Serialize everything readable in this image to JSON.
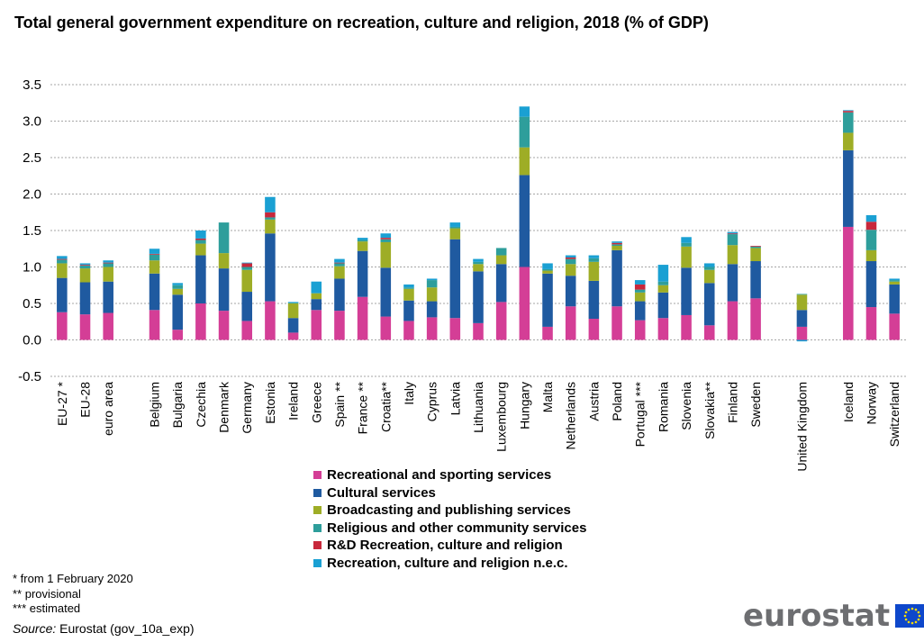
{
  "title": "Total general government expenditure on recreation, culture and religion, 2018 (% of GDP)",
  "notes": [
    "* from 1 February 2020",
    "** provisional",
    "*** estimated"
  ],
  "source_label": "Source:",
  "source_text": "Eurostat (gov_10a_exp)",
  "logo_text": "eurostat",
  "colors": {
    "recreational": "#d43e96",
    "cultural": "#1f5aa0",
    "broadcasting": "#9ead26",
    "religious": "#2e9e9b",
    "rd": "#c8283b",
    "nec": "#1aa0d3",
    "gridline": "#a6a6a6",
    "flag": "#0e47cb",
    "stars": "#ffdd00"
  },
  "chart_data": {
    "type": "bar",
    "stacked": true,
    "ylim": [
      -0.5,
      3.5
    ],
    "yticks": [
      -0.5,
      0.0,
      0.5,
      1.0,
      1.5,
      2.0,
      2.5,
      3.0,
      3.5
    ],
    "grid": true,
    "legend_position": "bottom",
    "categories": [
      "EU-27 *",
      "EU-28",
      "euro area",
      "",
      "Belgium",
      "Bulgaria",
      "Czechia",
      "Denmark",
      "Germany",
      "Estonia",
      "Ireland",
      "Greece",
      "Spain **",
      "France **",
      "Croatia**",
      "Italy",
      "Cyprus",
      "Latvia",
      "Lithuania",
      "Luxembourg",
      "Hungary",
      "Malta",
      "Netherlands",
      "Austria",
      "Poland",
      "Portugal ***",
      "Romania",
      "Slovenia",
      "Slovakia**",
      "Finland",
      "Sweden",
      "",
      "United Kingdom",
      "",
      "Iceland",
      "Norway",
      "Switzerland"
    ],
    "series": [
      {
        "name": "Recreational and sporting services",
        "color_key": "recreational",
        "values": [
          0.38,
          0.35,
          0.37,
          null,
          0.41,
          0.14,
          0.5,
          0.4,
          0.26,
          0.53,
          0.1,
          0.41,
          0.4,
          0.59,
          0.32,
          0.26,
          0.31,
          0.3,
          0.23,
          0.52,
          1.0,
          0.18,
          0.46,
          0.29,
          0.46,
          0.27,
          0.3,
          0.34,
          0.2,
          0.53,
          0.57,
          null,
          0.18,
          null,
          1.55,
          0.45,
          0.36
        ]
      },
      {
        "name": "Cultural services",
        "color_key": "cultural",
        "values": [
          0.47,
          0.44,
          0.43,
          null,
          0.5,
          0.48,
          0.66,
          0.58,
          0.4,
          0.93,
          0.2,
          0.15,
          0.44,
          0.63,
          0.67,
          0.28,
          0.22,
          1.08,
          0.71,
          0.52,
          1.26,
          0.73,
          0.42,
          0.52,
          0.77,
          0.26,
          0.35,
          0.65,
          0.58,
          0.51,
          0.51,
          null,
          0.23,
          null,
          1.05,
          0.63,
          0.4
        ]
      },
      {
        "name": "Broadcasting and publishing services",
        "color_key": "broadcasting",
        "values": [
          0.2,
          0.19,
          0.2,
          null,
          0.18,
          0.08,
          0.16,
          0.21,
          0.3,
          0.19,
          0.2,
          0.08,
          0.17,
          0.13,
          0.35,
          0.16,
          0.19,
          0.15,
          0.1,
          0.12,
          0.38,
          0.04,
          0.16,
          0.26,
          0.06,
          0.12,
          0.1,
          0.29,
          0.18,
          0.26,
          0.18,
          null,
          0.21,
          null,
          0.24,
          0.15,
          0.04
        ]
      },
      {
        "name": "Religious and other community services",
        "color_key": "religious",
        "values": [
          0.05,
          0.04,
          0.05,
          null,
          0.08,
          0.05,
          0.05,
          0.42,
          0.04,
          0.03,
          0.01,
          0.0,
          0.04,
          0.02,
          0.04,
          0.02,
          0.1,
          0.02,
          0.03,
          0.1,
          0.42,
          0.02,
          0.07,
          0.05,
          0.02,
          0.04,
          0.05,
          0.05,
          0.04,
          0.15,
          0.02,
          null,
          0.01,
          null,
          0.28,
          0.28,
          0.02
        ]
      },
      {
        "name": "R&D Recreation, culture and religion",
        "color_key": "rd",
        "values": [
          0.01,
          0.01,
          0.01,
          null,
          0.01,
          0.0,
          0.02,
          0.0,
          0.05,
          0.07,
          0.0,
          0.0,
          0.01,
          0.0,
          0.02,
          0.0,
          0.0,
          0.0,
          0.0,
          0.0,
          0.0,
          0.0,
          0.02,
          0.0,
          0.02,
          0.07,
          0.0,
          0.0,
          0.0,
          0.01,
          0.01,
          null,
          0.0,
          null,
          0.02,
          0.11,
          0.0
        ]
      },
      {
        "name": "Recreation, culture and religion n.e.c.",
        "color_key": "nec",
        "values": [
          0.04,
          0.02,
          0.03,
          null,
          0.07,
          0.03,
          0.11,
          0.0,
          0.01,
          0.21,
          0.01,
          0.16,
          0.05,
          0.03,
          0.06,
          0.04,
          0.02,
          0.06,
          0.04,
          0.0,
          0.14,
          0.08,
          0.03,
          0.04,
          0.02,
          0.06,
          0.23,
          0.08,
          0.05,
          0.02,
          0.0,
          null,
          -0.02,
          null,
          0.01,
          0.09,
          0.02
        ]
      }
    ]
  }
}
